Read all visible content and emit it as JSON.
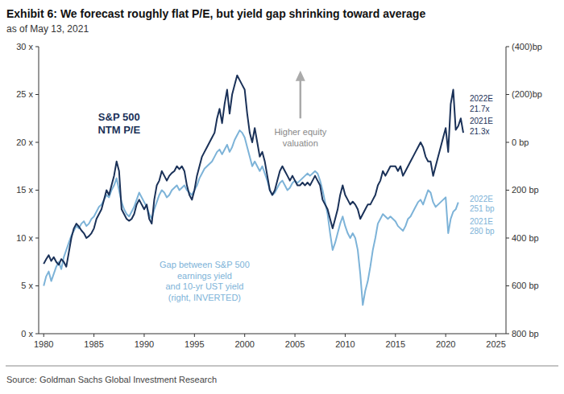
{
  "chart_data": {
    "type": "line",
    "title": "Exhibit 6: We forecast roughly flat P/E, but yield gap shrinking toward average",
    "subtitle": "as of May 13, 2021",
    "source": "Source: Goldman Sachs Global Investment Research",
    "annotations": [
      "Higher equity\nvaluation",
      "2022E\n21.7x",
      "2021E\n21.3x",
      "2022E\n251 bp",
      "2021E\n280 bp"
    ],
    "xlim": [
      1979.5,
      2026
    ],
    "xticks": [
      1980,
      1985,
      1990,
      1995,
      2000,
      2005,
      2010,
      2015,
      2020,
      2025
    ],
    "ylim": [
      0,
      30
    ],
    "yticks": [
      {
        "value": 0,
        "label": "0 x"
      },
      {
        "value": 5,
        "label": "5 x"
      },
      {
        "value": 10,
        "label": "10 x"
      },
      {
        "value": 15,
        "label": "15 x"
      },
      {
        "value": 20,
        "label": "20 x"
      },
      {
        "value": 25,
        "label": "25 x"
      },
      {
        "value": 30,
        "label": "30 x"
      }
    ],
    "y2lim": [
      800,
      -400
    ],
    "y2ticks": [
      {
        "value": -400,
        "label": "(400)bp"
      },
      {
        "value": -200,
        "label": "(200)bp"
      },
      {
        "value": 0,
        "label": "0 bp"
      },
      {
        "value": 200,
        "label": "200 bp"
      },
      {
        "value": 400,
        "label": "400 bp"
      },
      {
        "value": 600,
        "label": "600 bp"
      },
      {
        "value": 800,
        "label": "800 bp"
      }
    ],
    "grid": false,
    "series": [
      {
        "name": "S&P 500\nNTM P/E",
        "color": "#1a3158",
        "x": [
          1980,
          1980.25,
          1980.5,
          1980.75,
          1981,
          1981.25,
          1981.5,
          1981.75,
          1982,
          1982.25,
          1982.5,
          1982.75,
          1983,
          1983.25,
          1983.5,
          1983.75,
          1984,
          1984.25,
          1984.5,
          1984.75,
          1985,
          1985.25,
          1985.5,
          1985.75,
          1986,
          1986.25,
          1986.5,
          1986.75,
          1987,
          1987.25,
          1987.5,
          1987.75,
          1988,
          1988.25,
          1988.5,
          1988.75,
          1989,
          1989.25,
          1989.5,
          1989.75,
          1990,
          1990.25,
          1990.5,
          1990.75,
          1991,
          1991.25,
          1991.5,
          1991.75,
          1992,
          1992.25,
          1992.5,
          1992.75,
          1993,
          1993.25,
          1993.5,
          1993.75,
          1994,
          1994.25,
          1994.5,
          1994.75,
          1995,
          1995.25,
          1995.5,
          1995.75,
          1996,
          1996.25,
          1996.5,
          1996.75,
          1997,
          1997.25,
          1997.5,
          1997.75,
          1998,
          1998.25,
          1998.5,
          1998.75,
          1999,
          1999.25,
          1999.5,
          1999.75,
          2000,
          2000.25,
          2000.5,
          2000.75,
          2001,
          2001.25,
          2001.5,
          2001.75,
          2002,
          2002.25,
          2002.5,
          2002.75,
          2003,
          2003.25,
          2003.5,
          2003.75,
          2004,
          2004.25,
          2004.5,
          2004.75,
          2005,
          2005.25,
          2005.5,
          2005.75,
          2006,
          2006.25,
          2006.5,
          2006.75,
          2007,
          2007.25,
          2007.5,
          2007.75,
          2008,
          2008.25,
          2008.5,
          2008.75,
          2009,
          2009.25,
          2009.5,
          2009.75,
          2010,
          2010.25,
          2010.5,
          2010.75,
          2011,
          2011.25,
          2011.5,
          2011.75,
          2012,
          2012.25,
          2012.5,
          2012.75,
          2013,
          2013.25,
          2013.5,
          2013.75,
          2014,
          2014.25,
          2014.5,
          2014.75,
          2015,
          2015.25,
          2015.5,
          2015.75,
          2016,
          2016.25,
          2016.5,
          2016.75,
          2017,
          2017.25,
          2017.5,
          2017.75,
          2018,
          2018.25,
          2018.5,
          2018.75,
          2019,
          2019.25,
          2019.5,
          2019.75,
          2020,
          2020.25,
          2020.5,
          2020.75,
          2021,
          2021.25,
          2021.5,
          2021.75
        ],
        "values": [
          7.3,
          7.8,
          8.2,
          7.6,
          8.0,
          7.5,
          7.2,
          7.8,
          7.5,
          7.0,
          8.5,
          10.0,
          11.0,
          11.5,
          11.2,
          10.8,
          10.5,
          10.0,
          10.2,
          10.5,
          11.0,
          12.0,
          12.5,
          13.0,
          14.0,
          15.0,
          14.5,
          15.5,
          16.5,
          18.0,
          17.0,
          13.0,
          12.5,
          12.0,
          11.8,
          12.0,
          12.5,
          13.5,
          14.0,
          13.5,
          13.0,
          13.5,
          12.0,
          11.5,
          14.0,
          15.5,
          16.0,
          17.0,
          16.5,
          16.0,
          16.5,
          16.8,
          17.0,
          17.5,
          17.2,
          17.5,
          17.0,
          15.5,
          14.5,
          14.0,
          15.0,
          16.5,
          17.5,
          18.5,
          19.0,
          19.5,
          20.0,
          20.5,
          21.0,
          22.5,
          23.5,
          22.0,
          24.0,
          25.5,
          23.0,
          25.0,
          26.0,
          27.0,
          26.5,
          26.0,
          25.5,
          23.0,
          21.0,
          20.0,
          21.5,
          20.0,
          18.5,
          19.0,
          18.0,
          16.5,
          15.0,
          14.5,
          15.0,
          16.0,
          17.0,
          17.5,
          17.0,
          16.5,
          16.0,
          16.5,
          16.0,
          15.5,
          15.5,
          15.8,
          15.5,
          15.8,
          15.5,
          16.0,
          16.5,
          16.0,
          15.5,
          14.0,
          13.5,
          13.0,
          12.0,
          11.0,
          12.0,
          13.0,
          14.5,
          15.5,
          14.5,
          14.0,
          13.5,
          13.8,
          13.5,
          13.0,
          12.0,
          12.5,
          13.0,
          13.5,
          13.5,
          14.0,
          14.5,
          15.5,
          16.0,
          17.0,
          16.5,
          17.0,
          17.5,
          17.5,
          17.5,
          17.0,
          17.5,
          16.5,
          17.0,
          17.5,
          18.0,
          18.5,
          19.0,
          19.5,
          20.0,
          19.5,
          18.5,
          18.0,
          18.0,
          16.5,
          17.5,
          18.5,
          19.5,
          20.5,
          21.5,
          19.0,
          24.0,
          25.5,
          21.3,
          21.7,
          22.5,
          21.0
        ]
      },
      {
        "name": "Gap between S&P 500\nearnings yield\nand 10-yr UST yield\n(right, INVERTED)",
        "color": "#7db3d8",
        "axis": "y2",
        "x": [
          1980,
          1980.25,
          1980.5,
          1980.75,
          1981,
          1981.25,
          1981.5,
          1981.75,
          1982,
          1982.25,
          1982.5,
          1982.75,
          1983,
          1983.25,
          1983.5,
          1983.75,
          1984,
          1984.25,
          1984.5,
          1984.75,
          1985,
          1985.25,
          1985.5,
          1985.75,
          1986,
          1986.25,
          1986.5,
          1986.75,
          1987,
          1987.25,
          1987.5,
          1987.75,
          1988,
          1988.25,
          1988.5,
          1988.75,
          1989,
          1989.25,
          1989.5,
          1989.75,
          1990,
          1990.25,
          1990.5,
          1990.75,
          1991,
          1991.25,
          1991.5,
          1991.75,
          1992,
          1992.25,
          1992.5,
          1992.75,
          1993,
          1993.25,
          1993.5,
          1993.75,
          1994,
          1994.25,
          1994.5,
          1994.75,
          1995,
          1995.25,
          1995.5,
          1995.75,
          1996,
          1996.25,
          1996.5,
          1996.75,
          1997,
          1997.25,
          1997.5,
          1997.75,
          1998,
          1998.25,
          1998.5,
          1998.75,
          1999,
          1999.25,
          1999.5,
          1999.75,
          2000,
          2000.25,
          2000.5,
          2000.75,
          2001,
          2001.25,
          2001.5,
          2001.75,
          2002,
          2002.25,
          2002.5,
          2002.75,
          2003,
          2003.25,
          2003.5,
          2003.75,
          2004,
          2004.25,
          2004.5,
          2004.75,
          2005,
          2005.25,
          2005.5,
          2005.75,
          2006,
          2006.25,
          2006.5,
          2006.75,
          2007,
          2007.25,
          2007.5,
          2007.75,
          2008,
          2008.25,
          2008.5,
          2008.75,
          2009,
          2009.25,
          2009.5,
          2009.75,
          2010,
          2010.25,
          2010.5,
          2010.75,
          2011,
          2011.25,
          2011.5,
          2011.75,
          2012,
          2012.25,
          2012.5,
          2012.75,
          2013,
          2013.25,
          2013.5,
          2013.75,
          2014,
          2014.25,
          2014.5,
          2014.75,
          2015,
          2015.25,
          2015.5,
          2015.75,
          2016,
          2016.25,
          2016.5,
          2016.75,
          2017,
          2017.25,
          2017.5,
          2017.75,
          2018,
          2018.25,
          2018.5,
          2018.75,
          2019,
          2019.25,
          2019.5,
          2019.75,
          2020,
          2020.25,
          2020.5,
          2020.75,
          2021,
          2021.25
        ],
        "values": [
          600,
          560,
          540,
          580,
          550,
          520,
          500,
          530,
          480,
          450,
          420,
          390,
          370,
          350,
          360,
          340,
          330,
          350,
          340,
          320,
          310,
          290,
          270,
          260,
          240,
          220,
          230,
          200,
          180,
          150,
          200,
          250,
          280,
          300,
          310,
          290,
          270,
          240,
          210,
          230,
          250,
          270,
          300,
          320,
          280,
          250,
          220,
          200,
          210,
          230,
          220,
          200,
          190,
          180,
          200,
          190,
          180,
          200,
          210,
          220,
          200,
          180,
          150,
          130,
          110,
          100,
          90,
          80,
          60,
          40,
          30,
          50,
          30,
          10,
          40,
          20,
          -10,
          -30,
          -50,
          -40,
          -20,
          20,
          60,
          100,
          80,
          100,
          120,
          100,
          130,
          160,
          200,
          220,
          210,
          190,
          170,
          160,
          180,
          200,
          190,
          170,
          160,
          170,
          160,
          150,
          140,
          130,
          140,
          130,
          120,
          130,
          160,
          200,
          250,
          300,
          380,
          450,
          420,
          380,
          340,
          310,
          350,
          380,
          400,
          380,
          400,
          450,
          550,
          680,
          620,
          580,
          520,
          450,
          400,
          340,
          320,
          300,
          310,
          320,
          310,
          320,
          330,
          350,
          360,
          370,
          350,
          320,
          310,
          290,
          270,
          250,
          240,
          260,
          230,
          200,
          210,
          250,
          270,
          260,
          250,
          240,
          230,
          380,
          320,
          290,
          280,
          251
        ]
      }
    ]
  }
}
